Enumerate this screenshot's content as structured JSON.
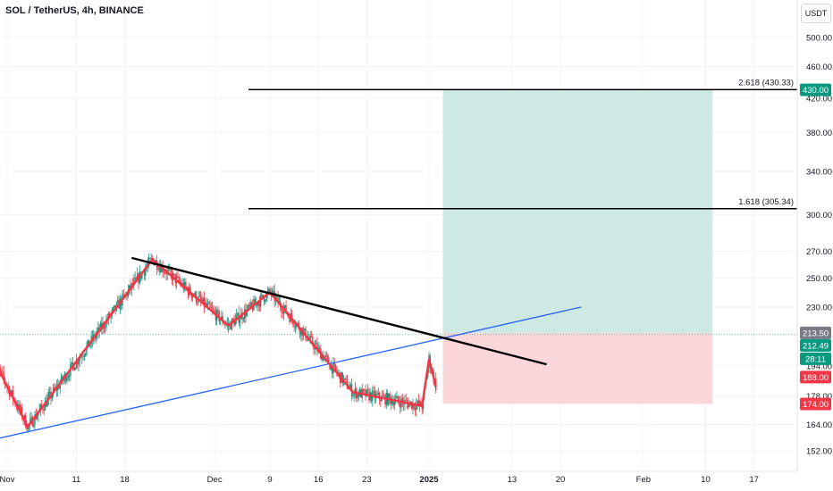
{
  "header": {
    "title": "SOL / TetherUS, 4h, BINANCE",
    "unit": "USDT"
  },
  "chart_data": {
    "type": "candlestick",
    "title": "SOL / TetherUS, 4h, BINANCE",
    "y_scale": "log",
    "ylim": [
      148,
      540
    ],
    "y_ticks": [
      500,
      460,
      420,
      380,
      340,
      300,
      270,
      250,
      230,
      194,
      178,
      164,
      152
    ],
    "x_ticks": [
      {
        "label": "Nov",
        "date": "2024-11-01"
      },
      {
        "label": "11",
        "date": "2024-11-11"
      },
      {
        "label": "18",
        "date": "2024-11-18"
      },
      {
        "label": "Dec",
        "date": "2024-12-01"
      },
      {
        "label": "9",
        "date": "2024-12-09"
      },
      {
        "label": "16",
        "date": "2024-12-16"
      },
      {
        "label": "23",
        "date": "2024-12-23"
      },
      {
        "label": "2025",
        "date": "2025-01-01"
      },
      {
        "label": "13",
        "date": "2025-01-13"
      },
      {
        "label": "20",
        "date": "2025-01-20"
      },
      {
        "label": "Feb",
        "date": "2025-02-01"
      },
      {
        "label": "10",
        "date": "2025-02-10"
      },
      {
        "label": "17",
        "date": "2025-02-17"
      }
    ],
    "fib_levels": [
      {
        "label": "2.618 (430.33)",
        "value": 430.33
      },
      {
        "label": "1.618 (305.34)",
        "value": 305.34
      }
    ],
    "price_badges": [
      {
        "text": "430.00",
        "value": 430.0,
        "color": "#089981"
      },
      {
        "text": "213.50",
        "value": 213.5,
        "color": "#787b86"
      },
      {
        "text": "212.49",
        "value": 212.49,
        "color": "#089981"
      },
      {
        "text": "28:11",
        "value": null,
        "color": "#089981"
      },
      {
        "text": "188.00",
        "value": 188.0,
        "color": "#f23645"
      },
      {
        "text": "174.00",
        "value": 174.0,
        "color": "#f23645"
      }
    ],
    "position": {
      "entry": 213.5,
      "target": 430.0,
      "stop": 174.0,
      "start": "2025-01-03",
      "end": "2025-02-11"
    },
    "zigzag": [
      {
        "date": "2024-10-30",
        "price": 198
      },
      {
        "date": "2024-11-04",
        "price": 163
      },
      {
        "date": "2024-11-22",
        "price": 264
      },
      {
        "date": "2024-12-03",
        "price": 218
      },
      {
        "date": "2024-12-09",
        "price": 240
      },
      {
        "date": "2024-12-21",
        "price": 180
      },
      {
        "date": "2024-12-31",
        "price": 173
      },
      {
        "date": "2025-01-01",
        "price": 198
      },
      {
        "date": "2025-01-02",
        "price": 183
      }
    ],
    "resistance_line": [
      {
        "date": "2024-11-19",
        "price": 265
      },
      {
        "date": "2025-01-18",
        "price": 195
      }
    ],
    "support_line": [
      {
        "date": "2024-10-30",
        "price": 157
      },
      {
        "date": "2025-01-23",
        "price": 230
      }
    ],
    "colors": {
      "up": "#089981",
      "down": "#f23645",
      "zigzag": "#f23645",
      "trend": "#000000",
      "support": "#2962ff",
      "profit_zone": "#cce9e4",
      "loss_zone": "#fcd7da"
    }
  }
}
